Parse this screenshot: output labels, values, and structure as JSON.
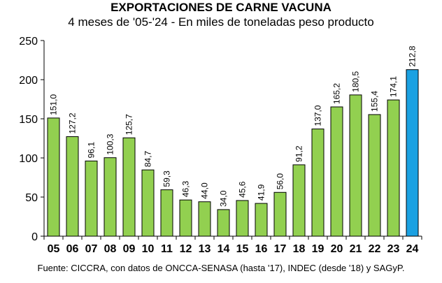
{
  "chart_data": {
    "type": "bar",
    "title": "EXPORTACIONES DE CARNE VACUNA",
    "subtitle": "4 meses de '05-'24 - En miles de toneladas peso producto",
    "source": "Fuente: CICCRA, con datos de ONCCA-SENASA (hasta '17), INDEC (desde '18) y SAGyP.",
    "xlabel": "",
    "ylabel": "",
    "categories": [
      "05",
      "06",
      "07",
      "08",
      "09",
      "10",
      "11",
      "12",
      "13",
      "14",
      "15",
      "16",
      "17",
      "18",
      "19",
      "20",
      "21",
      "22",
      "23",
      "24"
    ],
    "values": [
      151.0,
      127.2,
      96.1,
      100.3,
      125.7,
      84.7,
      59.3,
      46.3,
      44.0,
      34.0,
      45.6,
      41.9,
      56.0,
      91.2,
      137.0,
      165.2,
      180.5,
      155.4,
      174.1,
      212.8
    ],
    "value_labels": [
      "151,0",
      "127,2",
      "96,1",
      "100,3",
      "125,7",
      "84,7",
      "59,3",
      "46,3",
      "44,0",
      "34,0",
      "45,6",
      "41,9",
      "56,0",
      "91,2",
      "137,0",
      "165,2",
      "180,5",
      "155,4",
      "174,1",
      "212,8"
    ],
    "yticks": [
      0,
      50,
      100,
      150,
      200,
      250
    ],
    "ylim": [
      0,
      250
    ],
    "grid": false,
    "legend": "none",
    "colors": {
      "bar": "#92D050",
      "highlight": "#1BA1E2",
      "outline": "#000000"
    },
    "highlight_index": 19
  }
}
